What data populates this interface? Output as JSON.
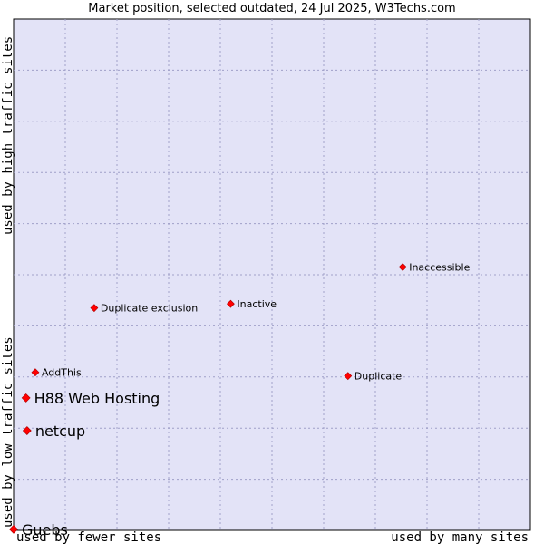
{
  "chart_data": {
    "type": "scatter",
    "title": "Market position, selected outdated, 24 Jul 2025, W3Techs.com",
    "xlabel_left": "used by fewer sites",
    "xlabel_right": "used by many sites",
    "ylabel_bottom": "used by low traffic sites",
    "ylabel_top": "used by high traffic sites",
    "xlim": [
      0,
      100
    ],
    "ylim": [
      0,
      100
    ],
    "colors": {
      "plot_bg": "#e3e3f7",
      "grid": "#a0a0c8",
      "point": "#ff0000"
    },
    "points": [
      {
        "label": "Inaccessible",
        "x": 75.3,
        "y": 51.5,
        "size": "small"
      },
      {
        "label": "Duplicate exclusion",
        "x": 15.6,
        "y": 43.5,
        "size": "small"
      },
      {
        "label": "Inactive",
        "x": 42.0,
        "y": 44.3,
        "size": "small"
      },
      {
        "label": "AddThis",
        "x": 4.2,
        "y": 30.9,
        "size": "small"
      },
      {
        "label": "Duplicate",
        "x": 64.7,
        "y": 30.2,
        "size": "small"
      },
      {
        "label": "H88 Web Hosting",
        "x": 2.4,
        "y": 25.9,
        "size": "large"
      },
      {
        "label": "netcup",
        "x": 2.6,
        "y": 19.5,
        "size": "large"
      },
      {
        "label": "Guebs",
        "x": 0.0,
        "y": 0.2,
        "size": "large"
      }
    ]
  }
}
